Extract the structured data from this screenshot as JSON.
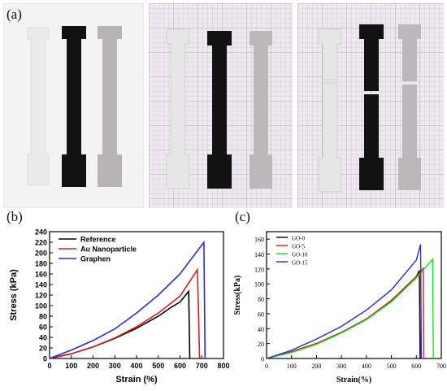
{
  "panels": {
    "a": {
      "label": "(a)"
    },
    "b": {
      "label": "(b)"
    },
    "c": {
      "label": "(c)"
    }
  },
  "colors": {
    "mold_bg": "#f4f4f4",
    "grid_bg": "#ece9ee",
    "grid_line": "#c9b7c6",
    "clear_specimen": "#e4e4e4",
    "black_specimen": "#111111",
    "grey_specimen": "#b9b4b6"
  },
  "chart_data": [
    {
      "id": "b",
      "type": "line",
      "title": "",
      "xlabel": "Strain (%)",
      "ylabel": "Stress (kPa)",
      "xlim": [
        0,
        800
      ],
      "ylim": [
        0,
        240
      ],
      "xticks": [
        0,
        100,
        200,
        300,
        400,
        500,
        600,
        700,
        800
      ],
      "yticks": [
        0,
        20,
        40,
        60,
        80,
        100,
        120,
        140,
        160,
        180,
        200,
        220,
        240
      ],
      "legend_position": "top-left",
      "series": [
        {
          "name": "Reference",
          "color": "#000000",
          "x": [
            0,
            100,
            200,
            300,
            400,
            500,
            560,
            600,
            640,
            645
          ],
          "y": [
            0,
            9,
            22,
            38,
            57,
            80,
            97,
            107,
            127,
            0
          ]
        },
        {
          "name": "Au Nanoparticle",
          "color": "#d42020",
          "x": [
            0,
            100,
            200,
            300,
            400,
            500,
            600,
            680,
            690
          ],
          "y": [
            0,
            9,
            22,
            39,
            60,
            86,
            118,
            168,
            0
          ]
        },
        {
          "name": "Graphen",
          "color": "#2a2ad8",
          "x": [
            0,
            100,
            200,
            300,
            400,
            500,
            600,
            710,
            715
          ],
          "y": [
            0,
            16,
            34,
            56,
            86,
            120,
            160,
            220,
            0
          ]
        }
      ]
    },
    {
      "id": "c",
      "type": "line",
      "title": "",
      "xlabel": "Strain(%)",
      "ylabel": "Stress(kPa)",
      "xlim": [
        0,
        700
      ],
      "ylim": [
        0,
        170
      ],
      "xticks": [
        0,
        100,
        200,
        300,
        400,
        500,
        600,
        700
      ],
      "yticks": [
        0,
        20,
        40,
        60,
        80,
        100,
        120,
        140,
        160
      ],
      "legend_position": "top-left",
      "series": [
        {
          "name": "GO-0",
          "color": "#000000",
          "x": [
            0,
            100,
            200,
            300,
            400,
            500,
            600,
            612,
            615
          ],
          "y": [
            0,
            9,
            20,
            35,
            53,
            77,
            110,
            118,
            0
          ]
        },
        {
          "name": "GO-5",
          "color": "#d42020",
          "x": [
            0,
            100,
            200,
            300,
            400,
            500,
            600,
            628,
            630
          ],
          "y": [
            0,
            9,
            20,
            35,
            53,
            78,
            110,
            121,
            0
          ]
        },
        {
          "name": "GO-10",
          "color": "#22dd22",
          "x": [
            0,
            100,
            200,
            300,
            400,
            500,
            600,
            665,
            668
          ],
          "y": [
            0,
            8,
            19,
            34,
            52,
            76,
            108,
            133,
            0
          ]
        },
        {
          "name": "GO-15",
          "color": "#2a2ad8",
          "x": [
            0,
            100,
            200,
            300,
            400,
            500,
            600,
            617,
            620
          ],
          "y": [
            0,
            11,
            26,
            43,
            65,
            92,
            132,
            153,
            0
          ]
        }
      ]
    }
  ]
}
